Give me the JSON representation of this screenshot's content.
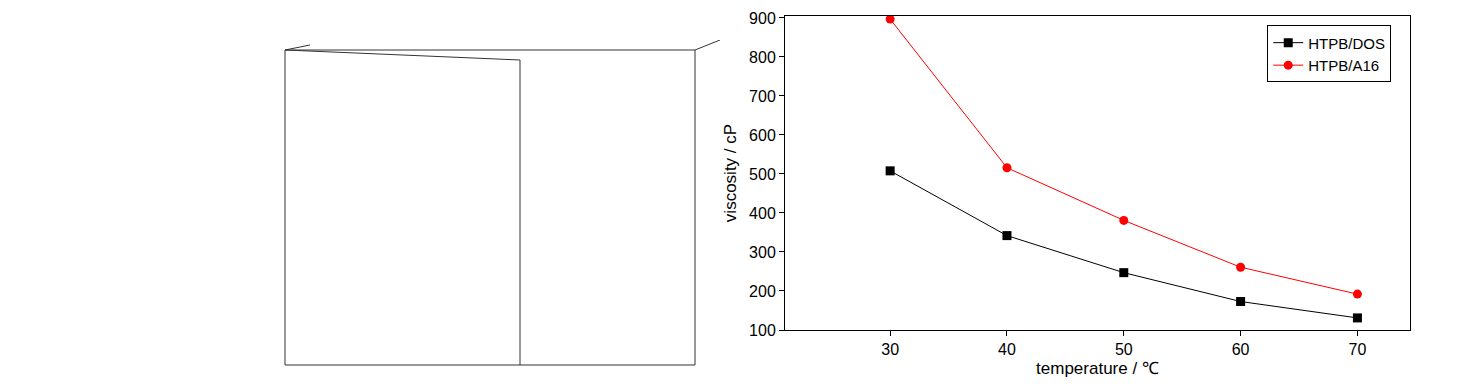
{
  "chart_data": {
    "type": "line",
    "x_label": "temperature / ℃",
    "y_label": "viscosity / cP",
    "x": [
      30,
      40,
      50,
      60,
      70
    ],
    "series": [
      {
        "name": "HTPB/DOS",
        "color": "#000000",
        "marker": "square",
        "values": [
          508,
          342,
          247,
          173,
          131
        ]
      },
      {
        "name": "HTPB/A16",
        "color": "#ff0000",
        "marker": "circle",
        "values": [
          897,
          516,
          381,
          261,
          192
        ]
      }
    ],
    "xlim": [
      21,
      74.5
    ],
    "xticks": [
      30,
      40,
      50,
      60,
      70
    ],
    "ylim": [
      100,
      905
    ],
    "yticks": [
      100,
      200,
      300,
      400,
      500,
      600,
      700,
      800,
      900
    ],
    "grid": false,
    "legend": "top right"
  }
}
